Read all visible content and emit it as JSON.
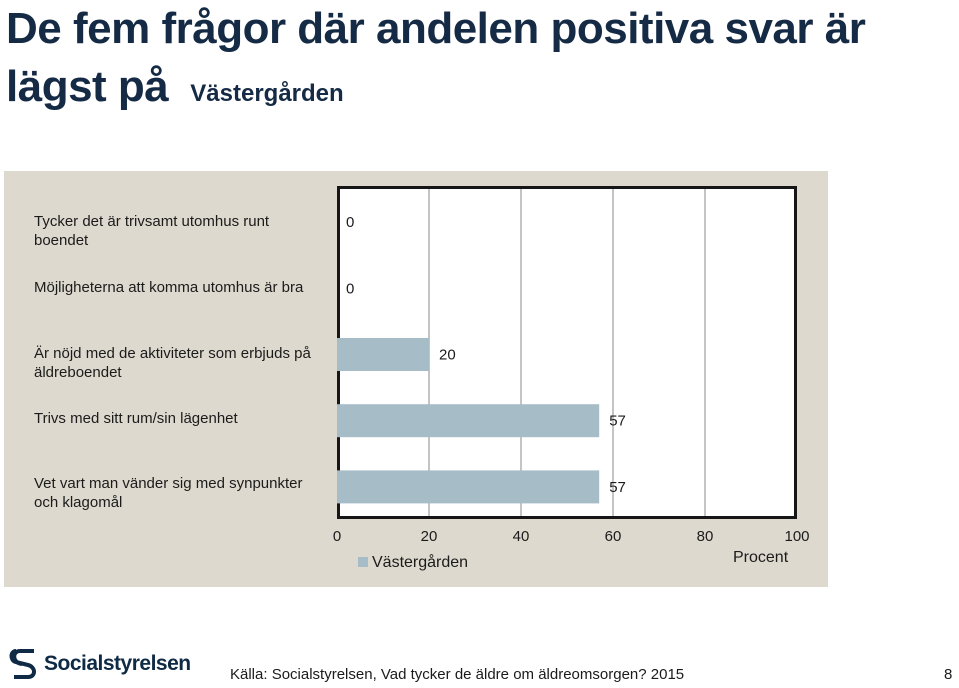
{
  "title": {
    "main": "De fem frågor där andelen positiva svar är lägst på",
    "unit": "Västergården"
  },
  "chart_data": {
    "type": "bar",
    "orientation": "horizontal",
    "categories": [
      "Tycker det är trivsamt utomhus runt boendet",
      "Möjligheterna att komma utomhus är bra",
      "Är nöjd med de aktiviteter som erbjuds på äldreboendet",
      "Trivs med sitt rum/sin lägenhet",
      "Vet vart man vänder sig med synpunkter och klagomål"
    ],
    "series": [
      {
        "name": "Västergården",
        "values": [
          0,
          0,
          20,
          57,
          57
        ]
      }
    ],
    "xlabel": "Procent",
    "xlim": [
      0,
      100
    ],
    "xticks": [
      0,
      20,
      40,
      60,
      80,
      100
    ],
    "grid": true,
    "legend": "bottom-left",
    "colors": {
      "bar": "#a6bcc7",
      "panel": "#ddd9ce",
      "title": "#152a44"
    }
  },
  "footer": {
    "logo_text": "Socialstyrelsen",
    "source": "Källa: Socialstyrelsen, Vad tycker de äldre om äldreomsorgen? 2015",
    "page": "8"
  }
}
